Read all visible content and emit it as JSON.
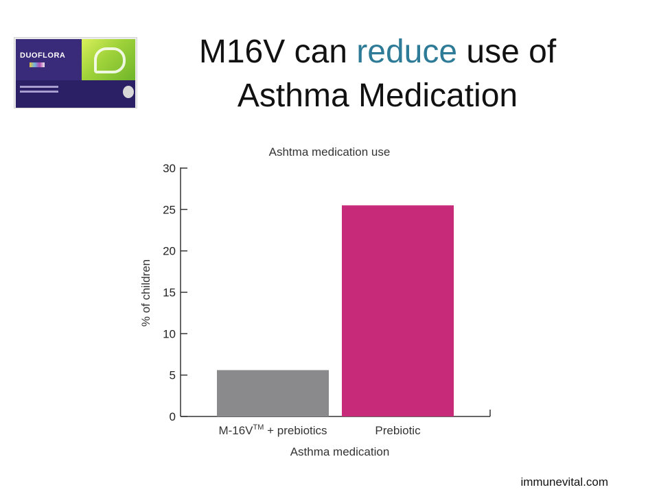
{
  "slide": {
    "title_line1_before": "M16V can ",
    "title_line1_accent": "reduce",
    "title_line1_after": " use of",
    "title_line2": "Asthma Medication",
    "accent_color": "#2e7b98"
  },
  "product": {
    "brand": "DUOFLORA",
    "description": "DuoFlora product box"
  },
  "footer": {
    "url": "immunevital.com"
  },
  "chart_data": {
    "type": "bar",
    "title": "Ashtma medication use",
    "categories": [
      "M-16V™ + prebiotics",
      "Prebiotic"
    ],
    "category_main": [
      "M-16V",
      "Prebiotic"
    ],
    "category_sup": [
      "TM",
      ""
    ],
    "category_tail": [
      " + prebiotics",
      ""
    ],
    "values": [
      5.6,
      25.5
    ],
    "colors": [
      "#8a8a8c",
      "#c62a78"
    ],
    "xlabel": "Asthma medication",
    "ylabel": "% of children",
    "ylim": [
      0,
      30
    ],
    "yticks": [
      0,
      5,
      10,
      15,
      20,
      25,
      30
    ],
    "grid": false
  }
}
